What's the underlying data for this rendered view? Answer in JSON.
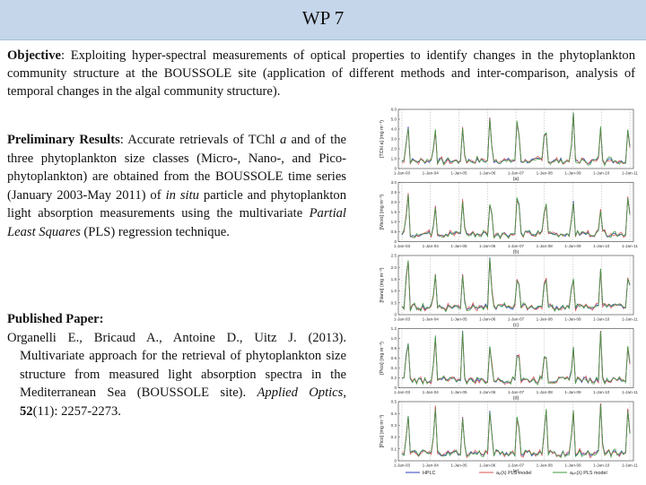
{
  "header": {
    "title": "WP 7"
  },
  "objective": {
    "label": "Objective",
    "text": ": Exploiting hyper-spectral measurements of optical properties to identify changes in the phytoplankton community structure at the BOUSSOLE site (application of different methods and inter-comparison, analysis of temporal changes in the algal community structure)."
  },
  "results": {
    "label": "Preliminary Results",
    "text_1": ": Accurate retrievals of TChl ",
    "italic_1": "a",
    "text_2": " and of the three phytoplankton size classes (Micro-, Nano-, and Pico-phytoplankton) are obtained from the BOUSSOLE time series (January 2003-May 2011) of ",
    "italic_2": "in situ",
    "text_3": " particle and phytoplankton light absorption measurements using the multivariate ",
    "italic_3": "Partial Least Squares",
    "text_4": " (PLS) regression technique."
  },
  "paper": {
    "label": "Published Paper",
    "label_suffix": ":",
    "text_1": "Organelli E., Bricaud A., Antoine D., Uitz J. (2013). Multivariate approach for the retrieval of phytoplankton size structure from measured light absorption spectra in the Mediterranean Sea (BOUSSOLE site). ",
    "journal": "Applied Optics",
    "sep": ", ",
    "volume": "52",
    "text_2": "(11): 2257-2273."
  },
  "figure": {
    "x_ticks": [
      "1-Jan-03",
      "1-Jan-04",
      "1-Jan-05",
      "1-Jan-06",
      "1-Jan-07",
      "1-Jan-08",
      "1-Jan-09",
      "1-Jan-10",
      "1-Jan-11"
    ],
    "panels": [
      {
        "ylabel": "[TChl a] (mg m⁻³)",
        "yticks": [
          "0",
          "1.0",
          "2.0",
          "3.0",
          "4.0",
          "5.0",
          "6.0"
        ],
        "ymax": 6,
        "letter": "(a)"
      },
      {
        "ylabel": "[Micro] (mg m⁻³)",
        "yticks": [
          "0",
          "0.5",
          "1.0",
          "1.5",
          "2.0",
          "2.5",
          "3.0"
        ],
        "ymax": 3,
        "letter": "(b)"
      },
      {
        "ylabel": "[Nano] (mg m⁻³)",
        "yticks": [
          "0",
          "0.5",
          "1.0",
          "1.5",
          "2.0",
          "2.5"
        ],
        "ymax": 2.5,
        "letter": "(c)"
      },
      {
        "ylabel": "[Pico] (mg m⁻³)",
        "yticks": [
          "0",
          "0.2",
          "0.4",
          "0.6",
          "0.8",
          "1.0",
          "1.2"
        ],
        "ymax": 1.2,
        "letter": "(d)"
      },
      {
        "ylabel": "[Pico] (mg m⁻³)",
        "yticks": [
          "0",
          "0.1",
          "0.2",
          "0.3",
          "0.4",
          "0.5"
        ],
        "ymax": 0.5,
        "letter": "(e)"
      }
    ],
    "legend": [
      {
        "label": "HPLC",
        "color": "#2a3fb8"
      },
      {
        "label": "aₚ(λ) PLS model",
        "color": "#d9534f"
      },
      {
        "label": "aₚₕ(λ) PLS model",
        "color": "#3a9a3a"
      }
    ]
  }
}
